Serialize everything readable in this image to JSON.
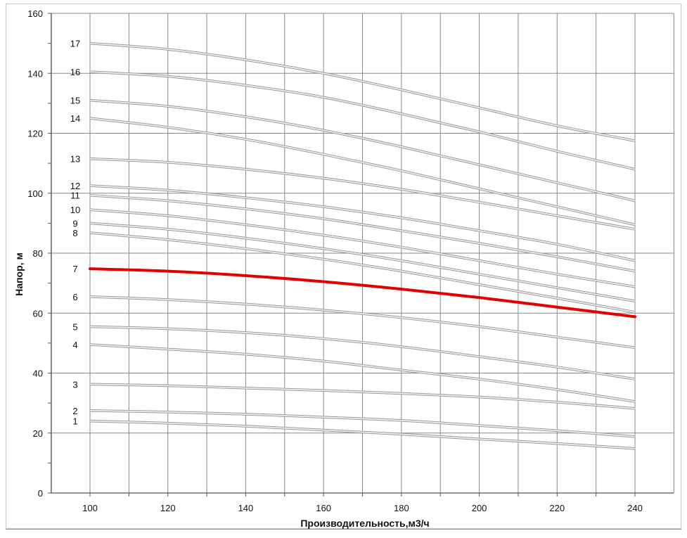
{
  "chart_data": {
    "type": "line",
    "title": "",
    "xlabel": "Производительность,м3/ч",
    "ylabel": "Напор, м",
    "xlim": [
      90,
      240
    ],
    "ylim": [
      0,
      160
    ],
    "x_ticks": [
      100,
      120,
      140,
      160,
      180,
      200,
      220,
      240
    ],
    "y_ticks": [
      0,
      20,
      40,
      60,
      80,
      100,
      120,
      140,
      160
    ],
    "grid": true,
    "legend": "inline labels at left end of each curve",
    "x": [
      100,
      120,
      140,
      160,
      180,
      200,
      220,
      240
    ],
    "highlighted_series": "7",
    "colors": {
      "normal": "#bdbdbd",
      "highlight": "#e30000",
      "grid": "#8a8a8a"
    },
    "series": [
      {
        "name": "1",
        "values": [
          24,
          23.3,
          22.3,
          21,
          19.6,
          18,
          16.5,
          14.8
        ]
      },
      {
        "name": "2",
        "values": [
          27.5,
          27,
          26.3,
          25.3,
          24.2,
          22.5,
          20.8,
          18.8
        ]
      },
      {
        "name": "3",
        "values": [
          36.3,
          35.8,
          35,
          34.2,
          33.2,
          32,
          30.3,
          28.2
        ]
      },
      {
        "name": "4",
        "values": [
          49.5,
          48,
          46.3,
          44,
          41,
          38,
          34.5,
          30.5
        ]
      },
      {
        "name": "5",
        "values": [
          55.5,
          54.8,
          53.5,
          51.5,
          48.8,
          45.5,
          42,
          38
        ]
      },
      {
        "name": "6",
        "values": [
          65.5,
          64.5,
          63,
          61,
          58.5,
          55.5,
          52,
          48.5
        ]
      },
      {
        "name": "7",
        "values": [
          74.8,
          74,
          72.5,
          70.5,
          68,
          65.2,
          62,
          58.8
        ]
      },
      {
        "name": "8",
        "values": [
          86.8,
          84.5,
          81.5,
          78,
          74,
          69.5,
          65,
          60.3
        ]
      },
      {
        "name": "9",
        "values": [
          90,
          88,
          85,
          81.5,
          77.5,
          73,
          68.5,
          64
        ]
      },
      {
        "name": "10",
        "values": [
          94.5,
          92.5,
          89.5,
          86,
          82,
          77.5,
          73,
          68.8
        ]
      },
      {
        "name": "11",
        "values": [
          99.3,
          97.5,
          94.8,
          91.5,
          87.5,
          83.3,
          78.8,
          74
        ]
      },
      {
        "name": "12",
        "values": [
          102.5,
          101,
          98.5,
          95.5,
          91.8,
          87.5,
          83,
          77.5
        ]
      },
      {
        "name": "13",
        "values": [
          111.5,
          110.3,
          108,
          105,
          101.3,
          97,
          92.5,
          88
        ]
      },
      {
        "name": "14",
        "values": [
          125,
          122,
          118,
          113,
          107.5,
          101.5,
          95.5,
          89.5
        ]
      },
      {
        "name": "15",
        "values": [
          131,
          129,
          125.5,
          121,
          115.5,
          109.5,
          103.5,
          97.5
        ]
      },
      {
        "name": "16",
        "values": [
          140.5,
          139,
          136,
          132,
          126.5,
          120.5,
          114,
          108
        ]
      },
      {
        "name": "17",
        "values": [
          150,
          148,
          144.5,
          140,
          134.5,
          128.5,
          122.5,
          117.5
        ]
      }
    ]
  }
}
